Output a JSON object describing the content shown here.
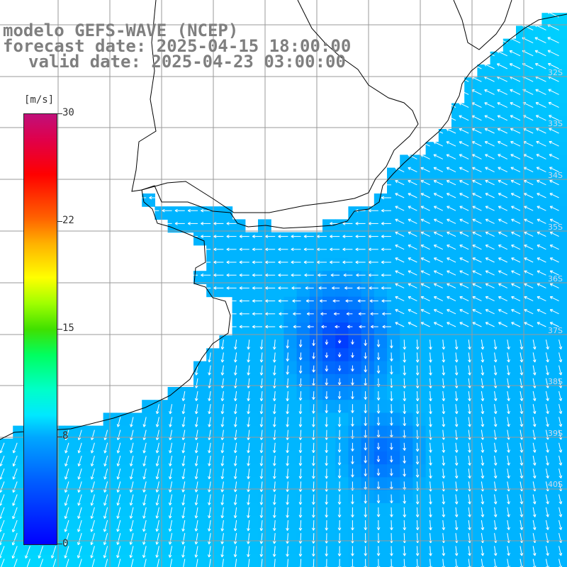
{
  "title": {
    "line1": "modelo GEFS-WAVE (NCEP)",
    "line2": "forecast date: 2025-04-15 18:00:00",
    "line3": "valid date: 2025-04-23 03:00:00"
  },
  "colorbar": {
    "unit": "[m/s]",
    "ticks": [
      "30",
      "22",
      "15",
      "8",
      "0"
    ]
  },
  "lat_labels": [
    "32S",
    "33S",
    "34S",
    "35S",
    "36S",
    "37S",
    "38S",
    "39S",
    "40S"
  ],
  "colors": {
    "land": "#ffffff",
    "grid": "#9a9a9a",
    "coast": "#000000",
    "arrows": "#ffffff",
    "low_speed": "#0038ff",
    "mid_speed": "#00b4ff",
    "high_speed": "#00e6ff"
  }
}
